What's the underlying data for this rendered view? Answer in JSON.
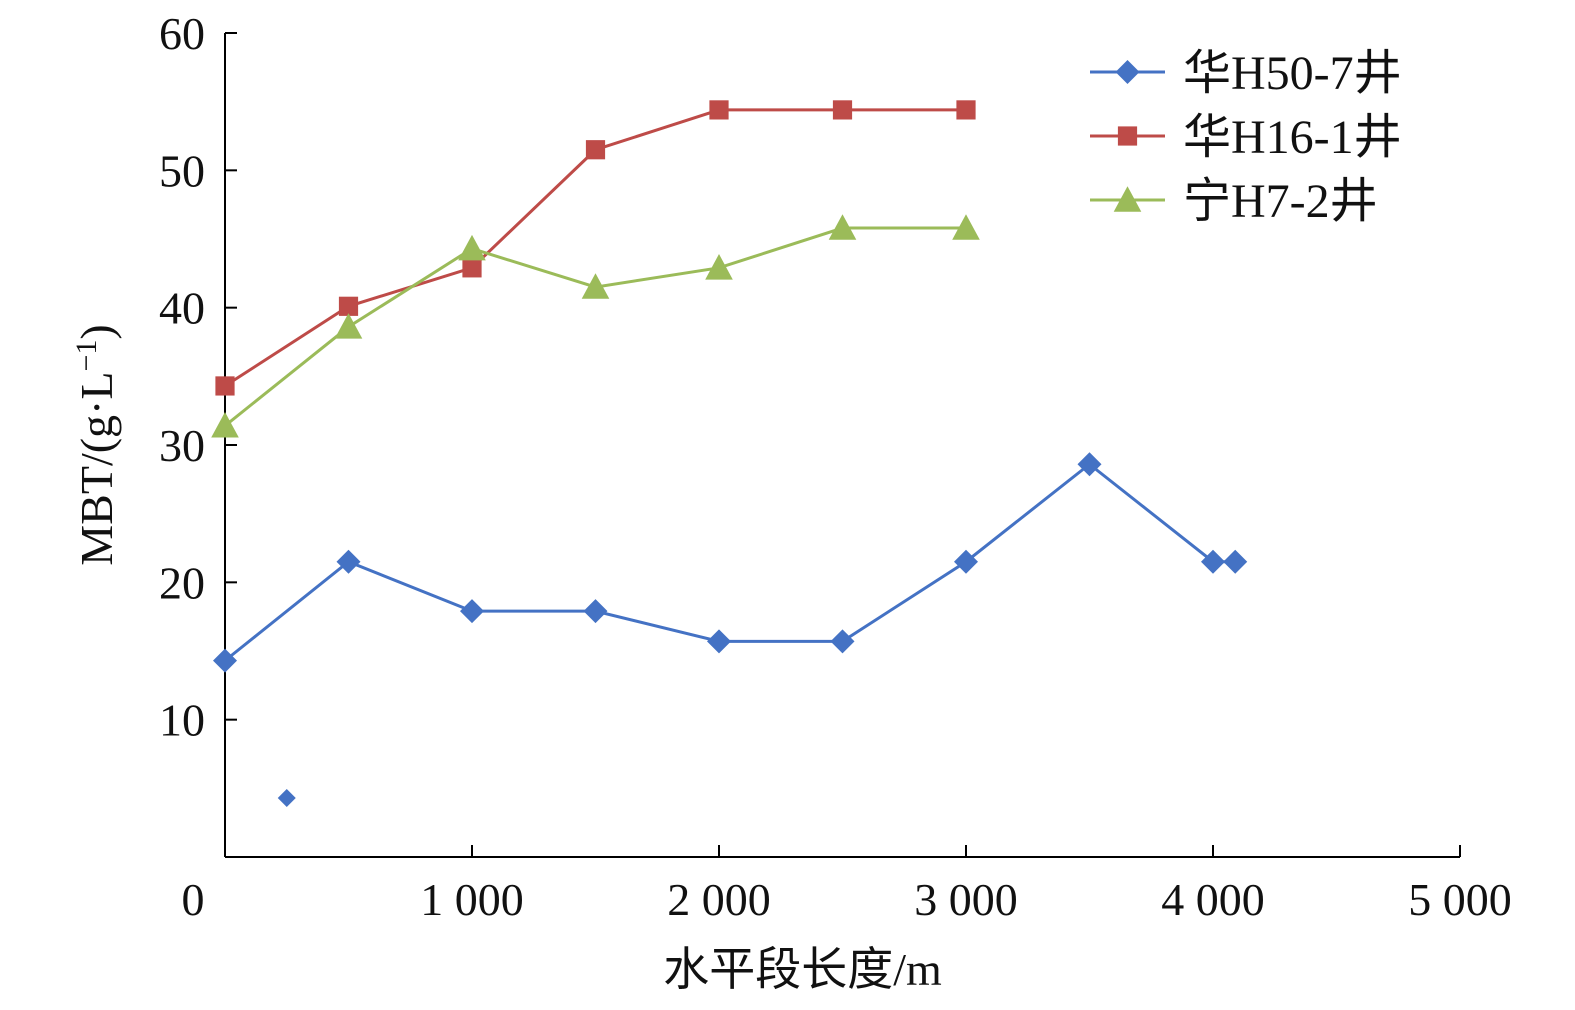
{
  "chart_data": {
    "type": "line",
    "xlabel": "水平段长度/m",
    "ylabel_main": "MBT/(g·L",
    "ylabel_sup": "−1",
    "ylabel_close": ")",
    "xlim": [
      0,
      5000
    ],
    "ylim": [
      0,
      60
    ],
    "xticks": [
      0,
      1000,
      2000,
      3000,
      4000,
      5000
    ],
    "xtick_labels": [
      "0",
      "1 000",
      "2 000",
      "3 000",
      "4 000",
      "5 000"
    ],
    "yticks": [
      10,
      20,
      30,
      40,
      50,
      60
    ],
    "ytick_labels": [
      "10",
      "20",
      "30",
      "40",
      "50",
      "60"
    ],
    "grid": false,
    "legend_position": "top-right",
    "series": [
      {
        "name": "华H50-7井",
        "marker": "diamond",
        "color": "#4472C4",
        "points": [
          [
            0,
            14.3
          ],
          [
            500,
            21.5
          ],
          [
            1000,
            17.9
          ],
          [
            1500,
            17.9
          ],
          [
            2000,
            15.7
          ],
          [
            2500,
            15.7
          ],
          [
            3000,
            21.5
          ],
          [
            3500,
            28.6
          ],
          [
            4000,
            21.5
          ],
          [
            4090,
            21.5
          ]
        ]
      },
      {
        "name": "华H16-1井",
        "marker": "square",
        "color": "#BE4B48",
        "points": [
          [
            0,
            34.3
          ],
          [
            500,
            40.1
          ],
          [
            1000,
            42.9
          ],
          [
            1500,
            51.5
          ],
          [
            2000,
            54.4
          ],
          [
            2500,
            54.4
          ],
          [
            3000,
            54.4
          ]
        ]
      },
      {
        "name": "宁H7-2井",
        "marker": "triangle",
        "color": "#9BBB59",
        "points": [
          [
            0,
            31.4
          ],
          [
            500,
            38.6
          ],
          [
            1000,
            44.3
          ],
          [
            1500,
            41.5
          ],
          [
            2000,
            42.9
          ],
          [
            2500,
            45.8
          ],
          [
            3000,
            45.8
          ]
        ]
      }
    ],
    "extra_points": [
      {
        "x": 250,
        "y": 4.3,
        "marker": "diamond",
        "color": "#4472C4"
      }
    ]
  }
}
